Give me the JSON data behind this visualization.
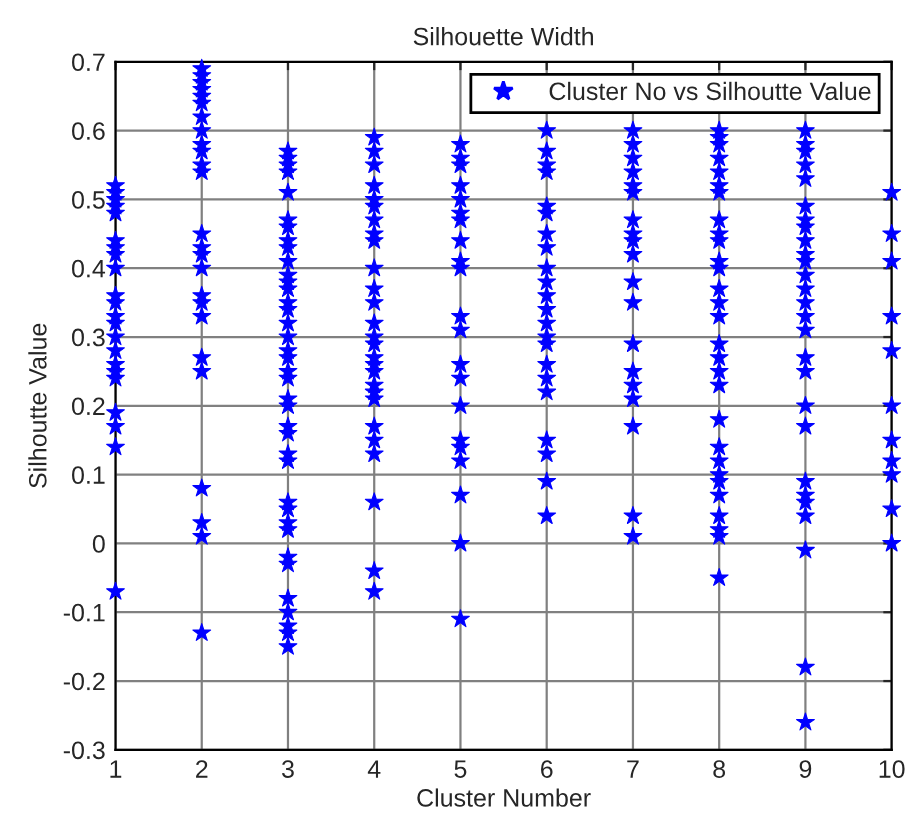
{
  "chart_data": {
    "type": "scatter",
    "title": "Silhouette Width",
    "xlabel": "Cluster Number",
    "ylabel": "Silhoutte Value",
    "xlim": [
      1,
      10
    ],
    "xticks": [
      1,
      2,
      3,
      4,
      5,
      6,
      7,
      8,
      9,
      10
    ],
    "ylim": [
      -0.3,
      0.7
    ],
    "yticks": [
      -0.3,
      -0.2,
      -0.1,
      0,
      0.1,
      0.2,
      0.3,
      0.4,
      0.5,
      0.6,
      0.7
    ],
    "grid": true,
    "legend": "top right",
    "marker": "star",
    "series": [
      {
        "name": "Cluster No vs Silhoutte Value",
        "color": "#0000ff",
        "x": [
          1,
          1,
          1,
          1,
          1,
          1,
          1,
          1,
          1,
          1,
          1,
          1,
          1,
          1,
          1,
          1,
          1,
          1,
          1,
          1,
          1,
          1
        ],
        "values": [
          0.52,
          0.51,
          0.5,
          0.49,
          0.48,
          0.44,
          0.43,
          0.42,
          0.4,
          0.36,
          0.35,
          0.33,
          0.32,
          0.3,
          0.28,
          0.26,
          0.25,
          0.24,
          0.19,
          0.17,
          0.14,
          -0.07
        ]
      },
      {
        "color": "#0000ff",
        "x": [
          2,
          2,
          2,
          2,
          2,
          2,
          2,
          2,
          2,
          2,
          2,
          2,
          2,
          2,
          2,
          2,
          2,
          2,
          2,
          2,
          2,
          2,
          2,
          2,
          2
        ],
        "values": [
          0.69,
          0.68,
          0.67,
          0.66,
          0.65,
          0.64,
          0.62,
          0.6,
          0.58,
          0.57,
          0.55,
          0.54,
          0.45,
          0.43,
          0.42,
          0.4,
          0.36,
          0.35,
          0.33,
          0.27,
          0.25,
          0.08,
          0.03,
          0.01,
          -0.13
        ]
      },
      {
        "color": "#0000ff",
        "x": [
          3,
          3,
          3,
          3,
          3,
          3,
          3,
          3,
          3,
          3,
          3,
          3,
          3,
          3,
          3,
          3,
          3,
          3,
          3,
          3,
          3,
          3,
          3,
          3,
          3,
          3,
          3,
          3,
          3,
          3,
          3,
          3,
          3,
          3,
          3,
          3,
          3,
          3
        ],
        "values": [
          0.57,
          0.56,
          0.55,
          0.54,
          0.51,
          0.47,
          0.46,
          0.44,
          0.43,
          0.41,
          0.39,
          0.38,
          0.37,
          0.35,
          0.34,
          0.32,
          0.3,
          0.28,
          0.27,
          0.25,
          0.24,
          0.21,
          0.2,
          0.17,
          0.16,
          0.13,
          0.12,
          0.06,
          0.05,
          0.03,
          0.02,
          -0.02,
          -0.03,
          -0.08,
          -0.1,
          -0.12,
          -0.13,
          -0.15
        ]
      },
      {
        "color": "#0000ff",
        "x": [
          4,
          4,
          4,
          4,
          4,
          4,
          4,
          4,
          4,
          4,
          4,
          4,
          4,
          4,
          4,
          4,
          4,
          4,
          4,
          4,
          4,
          4,
          4,
          4,
          4,
          4,
          4
        ],
        "values": [
          0.59,
          0.57,
          0.55,
          0.52,
          0.5,
          0.49,
          0.47,
          0.45,
          0.44,
          0.4,
          0.37,
          0.35,
          0.32,
          0.3,
          0.29,
          0.27,
          0.26,
          0.25,
          0.23,
          0.22,
          0.21,
          0.17,
          0.15,
          0.13,
          0.06,
          -0.04,
          -0.07
        ]
      },
      {
        "color": "#0000ff",
        "x": [
          5,
          5,
          5,
          5,
          5,
          5,
          5,
          5,
          5,
          5,
          5,
          5,
          5,
          5,
          5,
          5,
          5,
          5,
          5,
          5,
          5
        ],
        "values": [
          0.58,
          0.56,
          0.55,
          0.52,
          0.5,
          0.48,
          0.47,
          0.44,
          0.41,
          0.4,
          0.33,
          0.31,
          0.26,
          0.24,
          0.2,
          0.15,
          0.14,
          0.12,
          0.07,
          0.0,
          -0.11
        ]
      },
      {
        "color": "#0000ff",
        "x": [
          6,
          6,
          6,
          6,
          6,
          6,
          6,
          6,
          6,
          6,
          6,
          6,
          6,
          6,
          6,
          6,
          6,
          6,
          6,
          6,
          6,
          6
        ],
        "values": [
          0.6,
          0.57,
          0.55,
          0.54,
          0.49,
          0.48,
          0.45,
          0.43,
          0.4,
          0.38,
          0.36,
          0.34,
          0.32,
          0.3,
          0.29,
          0.26,
          0.24,
          0.22,
          0.15,
          0.13,
          0.09,
          0.04
        ]
      },
      {
        "color": "#0000ff",
        "x": [
          7,
          7,
          7,
          7,
          7,
          7,
          7,
          7,
          7,
          7,
          7,
          7,
          7,
          7,
          7,
          7,
          7,
          7,
          7
        ],
        "values": [
          0.6,
          0.58,
          0.56,
          0.54,
          0.52,
          0.51,
          0.47,
          0.45,
          0.44,
          0.42,
          0.38,
          0.35,
          0.29,
          0.25,
          0.23,
          0.21,
          0.17,
          0.04,
          0.01
        ]
      },
      {
        "color": "#0000ff",
        "x": [
          8,
          8,
          8,
          8,
          8,
          8,
          8,
          8,
          8,
          8,
          8,
          8,
          8,
          8,
          8,
          8,
          8,
          8,
          8,
          8,
          8,
          8,
          8,
          8,
          8,
          8,
          8,
          8,
          8
        ],
        "values": [
          0.6,
          0.59,
          0.58,
          0.56,
          0.54,
          0.52,
          0.51,
          0.47,
          0.45,
          0.44,
          0.41,
          0.4,
          0.37,
          0.35,
          0.33,
          0.29,
          0.27,
          0.25,
          0.23,
          0.18,
          0.14,
          0.12,
          0.1,
          0.09,
          0.07,
          0.04,
          0.02,
          0.01,
          -0.05
        ]
      },
      {
        "color": "#0000ff",
        "x": [
          9,
          9,
          9,
          9,
          9,
          9,
          9,
          9,
          9,
          9,
          9,
          9,
          9,
          9,
          9,
          9,
          9,
          9,
          9,
          9,
          9,
          9,
          9,
          9,
          9,
          9,
          9
        ],
        "values": [
          0.6,
          0.58,
          0.57,
          0.55,
          0.53,
          0.49,
          0.47,
          0.46,
          0.44,
          0.42,
          0.41,
          0.39,
          0.37,
          0.35,
          0.33,
          0.31,
          0.27,
          0.25,
          0.2,
          0.17,
          0.09,
          0.07,
          0.06,
          0.04,
          -0.01,
          -0.18,
          -0.26
        ]
      },
      {
        "color": "#0000ff",
        "x": [
          10,
          10,
          10,
          10,
          10,
          10,
          10,
          10,
          10,
          10,
          10
        ],
        "values": [
          0.51,
          0.45,
          0.41,
          0.33,
          0.28,
          0.2,
          0.15,
          0.12,
          0.1,
          0.05,
          0.0
        ]
      }
    ]
  }
}
